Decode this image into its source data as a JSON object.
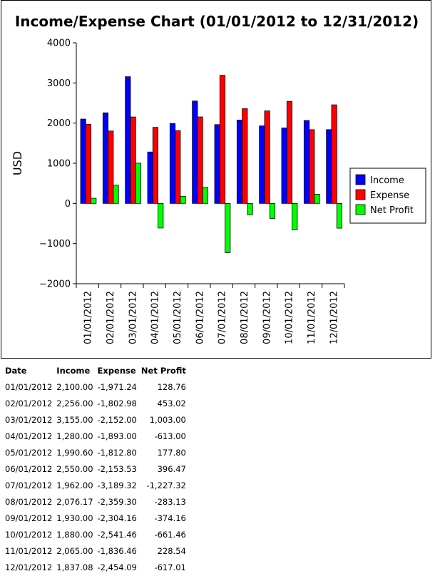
{
  "chart_data": {
    "type": "bar",
    "title": "Income/Expense Chart (01/01/2012 to 12/31/2012)",
    "xlabel": "",
    "ylabel": "USD",
    "ylim": [
      -2000,
      4000
    ],
    "yticks": [
      4000,
      3000,
      2000,
      1000,
      0,
      -1000,
      -2000
    ],
    "ytick_labels": [
      "4000",
      "3000",
      "2000",
      "1000",
      "0",
      "−1000",
      "−2000"
    ],
    "grid": false,
    "legend_position": "right",
    "categories": [
      "01/01/2012",
      "02/01/2012",
      "03/01/2012",
      "04/01/2012",
      "05/01/2012",
      "06/01/2012",
      "07/01/2012",
      "08/01/2012",
      "09/01/2012",
      "10/01/2012",
      "11/01/2012",
      "12/01/2012"
    ],
    "series": [
      {
        "name": "Income",
        "color": "#0000ff",
        "values": [
          2100.0,
          2256.0,
          3155.0,
          1280.0,
          1990.6,
          2550.0,
          1962.0,
          2076.17,
          1930.0,
          1880.0,
          2065.0,
          1837.08
        ]
      },
      {
        "name": "Expense",
        "color": "#ff0000",
        "values": [
          1971.24,
          1802.98,
          2152.0,
          1893.0,
          1812.8,
          2153.53,
          3189.32,
          2359.3,
          2304.16,
          2541.46,
          1836.46,
          2454.09
        ]
      },
      {
        "name": "Net Profit",
        "color": "#00ff00",
        "values": [
          128.76,
          453.02,
          1003.0,
          -613.0,
          177.8,
          396.47,
          -1227.32,
          -283.13,
          -374.16,
          -661.46,
          228.54,
          -617.01
        ]
      }
    ]
  },
  "table": {
    "headers": [
      "Date",
      "Income",
      "Expense",
      "Net Profit"
    ],
    "rows": [
      [
        "01/01/2012",
        "2,100.00",
        "-1,971.24",
        "128.76"
      ],
      [
        "02/01/2012",
        "2,256.00",
        "-1,802.98",
        "453.02"
      ],
      [
        "03/01/2012",
        "3,155.00",
        "-2,152.00",
        "1,003.00"
      ],
      [
        "04/01/2012",
        "1,280.00",
        "-1,893.00",
        "-613.00"
      ],
      [
        "05/01/2012",
        "1,990.60",
        "-1,812.80",
        "177.80"
      ],
      [
        "06/01/2012",
        "2,550.00",
        "-2,153.53",
        "396.47"
      ],
      [
        "07/01/2012",
        "1,962.00",
        "-3,189.32",
        "-1,227.32"
      ],
      [
        "08/01/2012",
        "2,076.17",
        "-2,359.30",
        "-283.13"
      ],
      [
        "09/01/2012",
        "1,930.00",
        "-2,304.16",
        "-374.16"
      ],
      [
        "10/01/2012",
        "1,880.00",
        "-2,541.46",
        "-661.46"
      ],
      [
        "11/01/2012",
        "2,065.00",
        "-1,836.46",
        "228.54"
      ],
      [
        "12/01/2012",
        "1,837.08",
        "-2,454.09",
        "-617.01"
      ]
    ]
  }
}
